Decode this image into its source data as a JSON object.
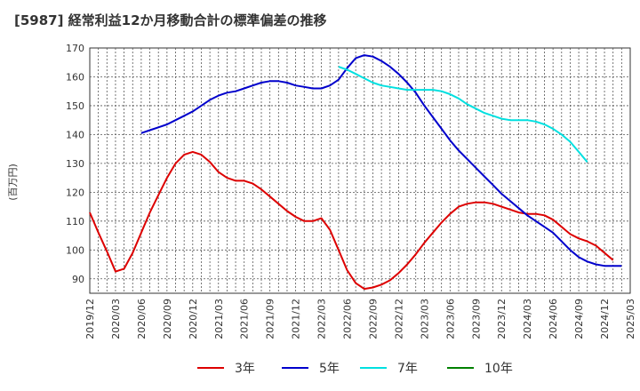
{
  "chart_data": {
    "type": "line",
    "title": "[5987]  経常利益12か月移動合計の標準偏差の推移",
    "ylabel": "(百万円)",
    "xlabel": "",
    "ylim": [
      85,
      170
    ],
    "yticks": [
      90,
      100,
      110,
      120,
      130,
      140,
      150,
      160,
      170
    ],
    "xticks": [
      "2019/12",
      "2020/03",
      "2020/06",
      "2020/09",
      "2020/12",
      "2021/03",
      "2021/06",
      "2021/09",
      "2021/12",
      "2022/03",
      "2022/06",
      "2022/09",
      "2022/12",
      "2023/03",
      "2023/06",
      "2023/09",
      "2023/12",
      "2024/03",
      "2024/06",
      "2024/09",
      "2024/12",
      "2025/03"
    ],
    "grid": true,
    "legend_position": "bottom",
    "series": [
      {
        "name": "3年",
        "color": "#dd0000",
        "start_month": 0,
        "values": [
          113,
          106,
          99.5,
          92.5,
          93.5,
          99,
          106,
          113,
          119,
          125,
          130,
          133,
          134,
          133,
          130.5,
          127,
          125,
          124,
          124,
          123,
          121,
          118.5,
          116,
          113.5,
          111.5,
          110,
          110,
          111,
          107,
          100,
          93,
          88.5,
          86.5,
          87,
          88,
          89.5,
          92,
          95,
          98.5,
          102.5,
          106,
          109.5,
          112.5,
          115,
          116,
          116.5,
          116.5,
          116,
          115,
          114,
          113,
          112.5,
          112.5,
          112,
          110.5,
          108,
          105.5,
          104,
          103,
          101.5,
          99,
          96.5
        ]
      },
      {
        "name": "5年",
        "color": "#0000cc",
        "start_month": 6,
        "values": [
          140.5,
          141.5,
          142.5,
          143.5,
          145,
          146.5,
          148,
          150,
          152,
          153.5,
          154.5,
          155,
          156,
          157,
          158,
          158.5,
          158.5,
          158,
          157,
          156.5,
          156,
          156,
          157,
          159,
          163,
          166.5,
          167.5,
          167,
          165.5,
          163.5,
          161,
          158,
          154.5,
          150,
          146,
          142,
          138,
          134.5,
          131.5,
          128.5,
          125.5,
          122.5,
          119.5,
          117,
          114.5,
          112,
          110,
          108,
          106,
          103,
          100,
          97.5,
          96,
          95,
          94.5,
          94.5,
          94.5
        ]
      },
      {
        "name": "7年",
        "color": "#00e0e0",
        "start_month": 29,
        "values": [
          163.5,
          162.5,
          161,
          159.5,
          158,
          157,
          156.5,
          156,
          155.5,
          155.5,
          155.5,
          155.5,
          155,
          154,
          152.5,
          150.5,
          149,
          147.5,
          146.5,
          145.5,
          145,
          145,
          145,
          144.5,
          143.5,
          142,
          140,
          137.5,
          134,
          130.5
        ]
      },
      {
        "name": "10年",
        "color": "#008000",
        "start_month": 0,
        "values": []
      }
    ]
  }
}
